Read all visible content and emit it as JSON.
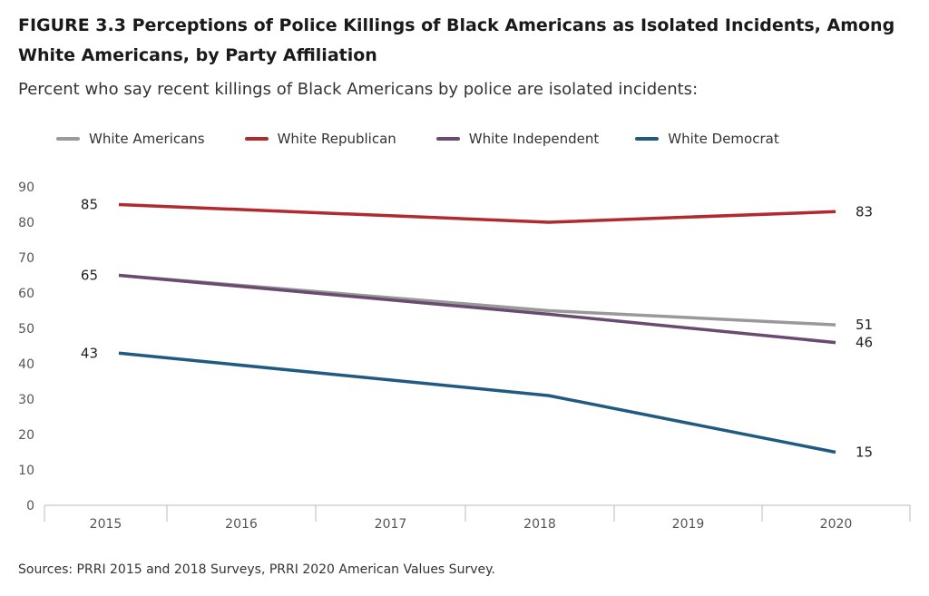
{
  "figure": {
    "title": "FIGURE 3.3  Perceptions of Police Killings of Black Americans as Isolated Incidents, Among White Americans, by Party Affiliation",
    "subtitle": "Percent who say recent killings of Black Americans by police are isolated incidents:",
    "source": "Sources: PRRI 2015 and 2018 Surveys, PRRI 2020 American Values Survey."
  },
  "chart_data": {
    "type": "line",
    "title": "FIGURE 3.3  Perceptions of Police Killings of Black Americans as Isolated Incidents, Among White Americans, by Party Affiliation",
    "subtitle": "Percent who say recent killings of Black Americans by police are isolated incidents:",
    "xlabel": "",
    "ylabel": "",
    "x": [
      "2015",
      "2016",
      "2017",
      "2018",
      "2019",
      "2020"
    ],
    "ylim": [
      0,
      90
    ],
    "yticks": [
      0,
      10,
      20,
      30,
      40,
      50,
      60,
      70,
      80,
      90
    ],
    "grid": false,
    "legend_position": "top",
    "series": [
      {
        "name": "White Americans",
        "color": "#999999",
        "points": [
          [
            2015,
            65
          ],
          [
            2018,
            55
          ],
          [
            2020,
            51
          ]
        ]
      },
      {
        "name": "White Republican",
        "color": "#b02a2e",
        "points": [
          [
            2015,
            85
          ],
          [
            2018,
            80
          ],
          [
            2020,
            83
          ]
        ]
      },
      {
        "name": "White Independent",
        "color": "#6b4a72",
        "points": [
          [
            2015,
            65
          ],
          [
            2018,
            54
          ],
          [
            2020,
            46
          ]
        ]
      },
      {
        "name": "White Democrat",
        "color": "#215a80",
        "points": [
          [
            2015,
            43
          ],
          [
            2018,
            31
          ],
          [
            2020,
            15
          ]
        ]
      }
    ],
    "data_labels": [
      {
        "text": "85",
        "x": 2015,
        "y": 85,
        "side": "left"
      },
      {
        "text": "65",
        "x": 2015,
        "y": 65,
        "side": "left"
      },
      {
        "text": "43",
        "x": 2015,
        "y": 43,
        "side": "left"
      },
      {
        "text": "83",
        "x": 2020,
        "y": 83,
        "side": "right"
      },
      {
        "text": "51",
        "x": 2020,
        "y": 51,
        "side": "right"
      },
      {
        "text": "46",
        "x": 2020,
        "y": 46,
        "side": "right"
      },
      {
        "text": "15",
        "x": 2020,
        "y": 15,
        "side": "right"
      }
    ]
  }
}
